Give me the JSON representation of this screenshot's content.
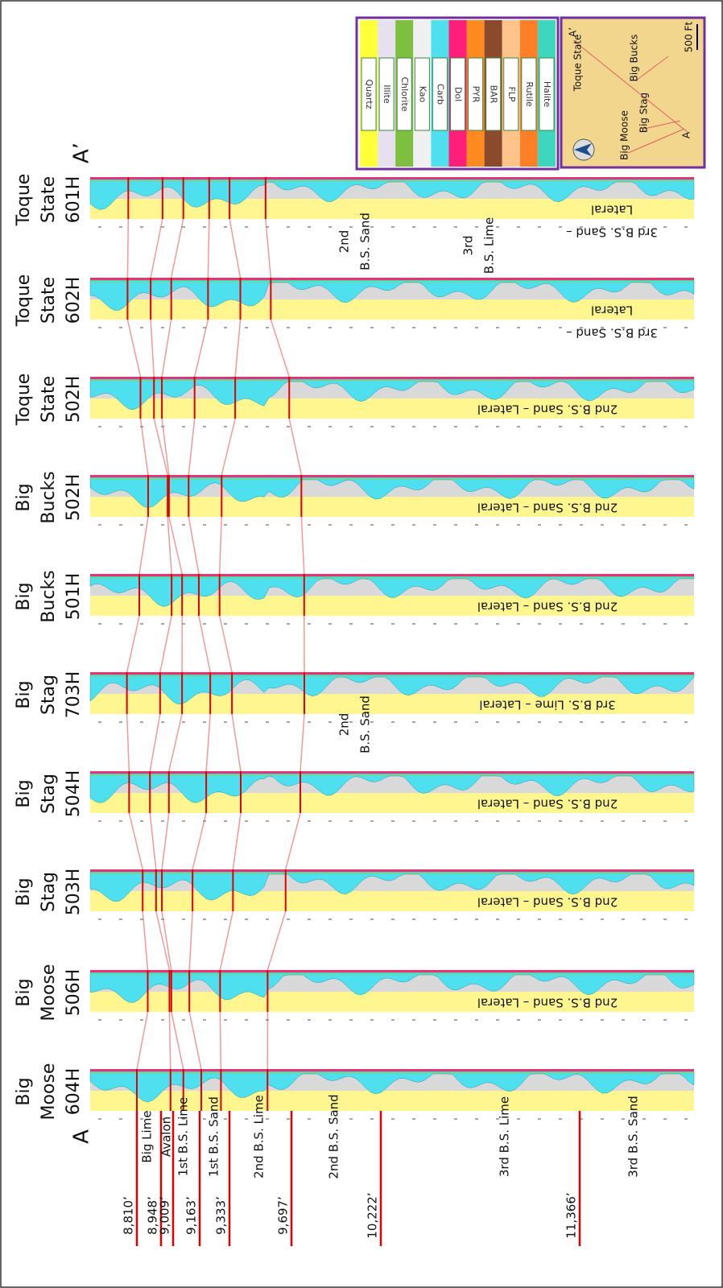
{
  "section": {
    "start_label": "A",
    "end_label": "A’"
  },
  "wells": [
    {
      "name": [
        "Big",
        "Moose",
        "604H"
      ]
    },
    {
      "name": [
        "Big",
        "Moose",
        "506H"
      ],
      "lateral": [
        "2nd B.S. Sand – Lateral"
      ]
    },
    {
      "name": [
        "Big",
        "Stag",
        "503H"
      ],
      "lateral": [
        "2nd B.S. Sand – Lateral"
      ]
    },
    {
      "name": [
        "Big",
        "Stag",
        "504H"
      ],
      "lateral": [
        "2nd B.S. Sand – Lateral"
      ]
    },
    {
      "name": [
        "Big",
        "Stag",
        "703H"
      ],
      "lateral": [
        "3rd B.S. Lime – Lateral"
      ]
    },
    {
      "name": [
        "Big",
        "Bucks",
        "501H"
      ],
      "lateral": [
        "2nd B.S. Sand – Lateral"
      ]
    },
    {
      "name": [
        "Big",
        "Bucks",
        "502H"
      ],
      "lateral": [
        "2nd B.S. Sand – Lateral"
      ]
    },
    {
      "name": [
        "Toque",
        "State",
        "502H"
      ],
      "lateral": [
        "2nd B.S. Sand – Lateral"
      ]
    },
    {
      "name": [
        "Toque",
        "State",
        "602H"
      ],
      "lateral": [
        "3rd B.S. Sand –",
        "Lateral"
      ]
    },
    {
      "name": [
        "Toque",
        "State",
        "601H"
      ],
      "lateral": [
        "3rd B.S. Sand –",
        "Lateral"
      ]
    }
  ],
  "tops": [
    {
      "depth": "8,810’",
      "name": "Big Lime"
    },
    {
      "depth": "8,948’",
      "name": "Avalon"
    },
    {
      "depth": "9,009’",
      "name": "1st B.S. Lime"
    },
    {
      "depth": "9,163’",
      "name": "1st B.S. Sand"
    },
    {
      "depth": "9,333’",
      "name": "2nd B.S. Lime"
    },
    {
      "depth": "9,697’",
      "name": "2nd B.S. Sand"
    },
    {
      "depth": "10,222’",
      "name": "3rd B.S. Lime"
    },
    {
      "depth": "11,366’",
      "name": "3rd B.S. Sand"
    }
  ],
  "annotations": [
    [
      "2nd",
      "B.S. Sand"
    ],
    [
      "3rd",
      "B.S. Lime"
    ],
    [
      "2nd",
      "B.S. Sand"
    ]
  ],
  "legend": [
    "Quartz",
    "Illite",
    "Chlorite",
    "Kao",
    "Carb",
    "Dol",
    "PYR",
    "BAR",
    "FLP",
    "Rutile",
    "Halite"
  ],
  "map": {
    "labels": [
      "Toque State",
      "Big Bucks",
      "Big Stag",
      "Big Moose",
      "A’",
      "A"
    ],
    "scale": "500 Ft"
  }
}
